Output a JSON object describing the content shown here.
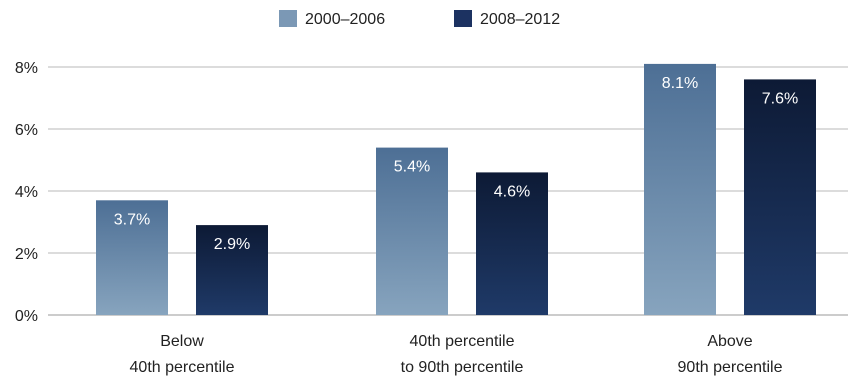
{
  "chart_data": {
    "type": "bar",
    "title": "",
    "xlabel": "",
    "ylabel": "",
    "categories": [
      [
        "Below",
        "40th percentile"
      ],
      [
        "40th percentile",
        "to 90th percentile"
      ],
      [
        "Above",
        "90th percentile"
      ]
    ],
    "series": [
      {
        "name": "2000–2006",
        "values": [
          3.7,
          5.4,
          8.1
        ],
        "labels": [
          "3.7%",
          "5.4%",
          "8.1%"
        ],
        "color_top": "#4d6f95",
        "color_bottom": "#87a4be",
        "legend_color": "#7b98b5"
      },
      {
        "name": "2008–2012",
        "values": [
          2.9,
          4.6,
          7.6
        ],
        "labels": [
          "2.9%",
          "4.6%",
          "7.6%"
        ],
        "color_top": "#0d1a35",
        "color_bottom": "#1f3a68",
        "legend_color": "#1c3261"
      }
    ],
    "ylim": [
      0,
      8
    ],
    "yticks": [
      0,
      2,
      4,
      6,
      8
    ],
    "ytick_labels": [
      "0%",
      "2%",
      "4%",
      "6%",
      "8%"
    ],
    "grid": true,
    "legend_position": "top-center"
  }
}
